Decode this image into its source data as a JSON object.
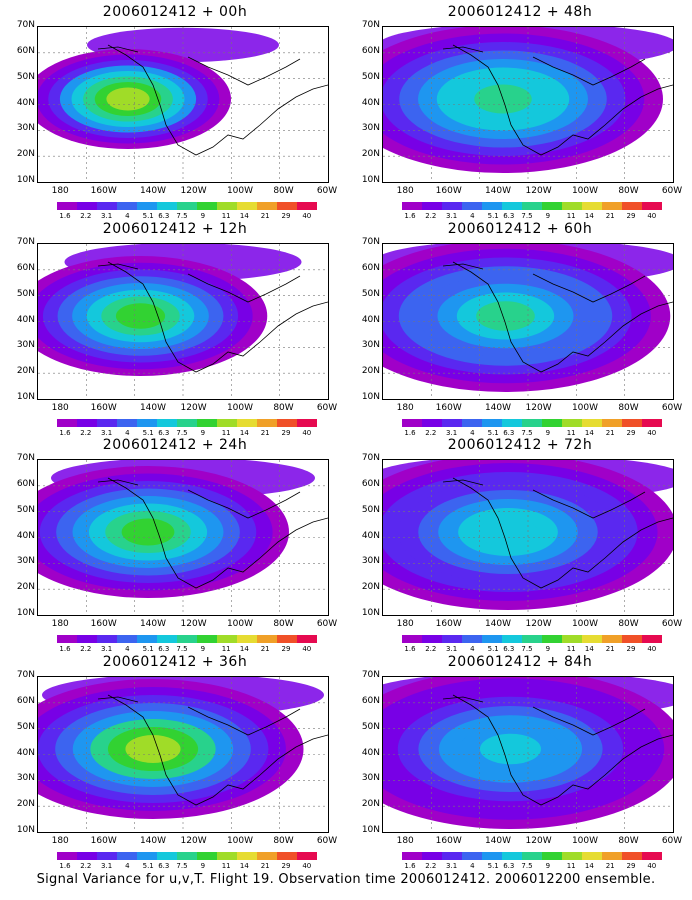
{
  "caption": "Signal Variance for u,v,T. Flight 19. Observation time 2006012412. 2006012200 ensemble.",
  "lat_labels": [
    "70N",
    "60N",
    "50N",
    "40N",
    "30N",
    "20N",
    "10N"
  ],
  "lon_labels": [
    "180",
    "160W",
    "140W",
    "120W",
    "100W",
    "80W",
    "60W"
  ],
  "colorbar": {
    "labels": [
      "1.6",
      "2.2",
      "3.1",
      "4",
      "5.1",
      "6.3",
      "7.5",
      "9",
      "11",
      "14",
      "21",
      "29",
      "40"
    ],
    "colors": [
      "#a000c8",
      "#7800e6",
      "#5a28f0",
      "#3c64f0",
      "#1e96f0",
      "#14c8dc",
      "#28d28c",
      "#32d232",
      "#a0dc28",
      "#e6dc32",
      "#f0a028",
      "#f05028",
      "#e60a50"
    ]
  },
  "panels": [
    {
      "title": "2006012412 + 00h",
      "intensity": 0.9,
      "spread": 0.4
    },
    {
      "title": "2006012412 + 48h",
      "intensity": 0.7,
      "spread": 1.0
    },
    {
      "title": "2006012412 + 12h",
      "intensity": 0.75,
      "spread": 0.65
    },
    {
      "title": "2006012412 + 60h",
      "intensity": 0.65,
      "spread": 1.05
    },
    {
      "title": "2006012412 + 24h",
      "intensity": 0.8,
      "spread": 0.8
    },
    {
      "title": "2006012412 + 72h",
      "intensity": 0.6,
      "spread": 1.1
    },
    {
      "title": "2006012412 + 36h",
      "intensity": 0.85,
      "spread": 0.9
    },
    {
      "title": "2006012412 + 84h",
      "intensity": 0.55,
      "spread": 1.15
    }
  ]
}
